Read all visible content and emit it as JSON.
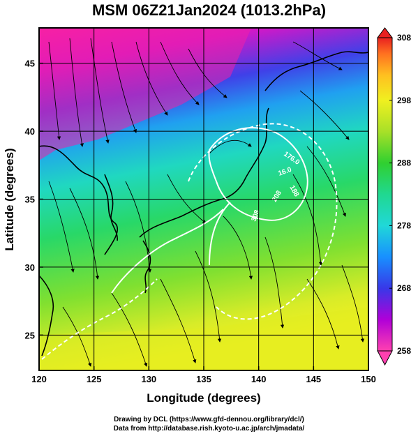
{
  "title": "MSM 06Z21Jan2024 (1013.2hPa)",
  "map": {
    "xlabel": "Longitude (degrees)",
    "ylabel": "Latitude  (degrees)",
    "lon_range": [
      120,
      150
    ],
    "lat_range": [
      22.4,
      47.6
    ],
    "lon_ticks": [
      120,
      125,
      130,
      135,
      140,
      145,
      150
    ],
    "lat_ticks": [
      25,
      30,
      35,
      40,
      45
    ],
    "grid": true
  },
  "colorbar": {
    "range": [
      258,
      308
    ],
    "tick_values": [
      258,
      268,
      278,
      288,
      298,
      308
    ],
    "colors": [
      "#ff40b0",
      "#b000d8",
      "#3838e8",
      "#1890ff",
      "#20d8d8",
      "#20d890",
      "#30d030",
      "#a8e028",
      "#f0f020",
      "#ffc020",
      "#ff7020",
      "#e82020"
    ]
  },
  "contour_labels": [
    "176.0",
    "16.0",
    "308",
    "208",
    "188"
  ],
  "credits": {
    "line1": "Drawing by DCL (https://www.gfd-dennou.org/library/dcl/)",
    "line2": "Data from http://database.rish.kyoto-u.ac.jp/arch/jmadata/"
  }
}
